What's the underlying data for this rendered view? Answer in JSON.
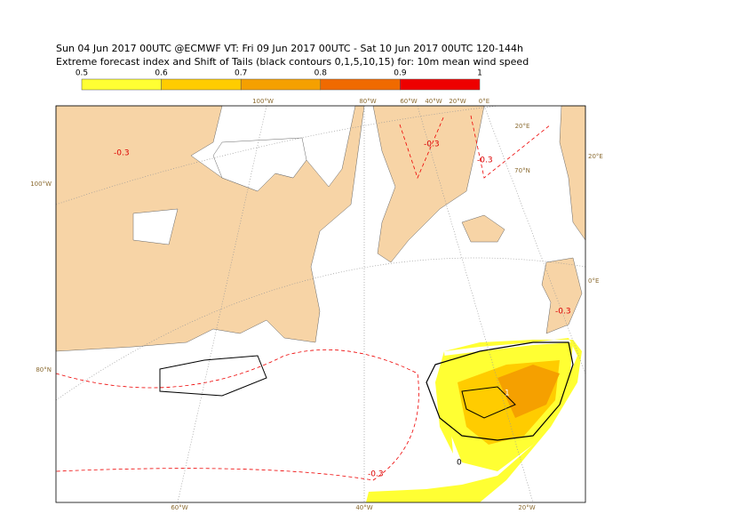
{
  "header": {
    "line1": "Sun 04 Jun 2017 00UTC @ECMWF VT: Fri 09 Jun 2017 00UTC - Sat 10 Jun 2017 00UTC  120-144h",
    "line2": "Extreme forecast index and Shift of Tails (black contours 0,1,5,10,15) for: 10m mean wind speed"
  },
  "colorbar": {
    "ticks": [
      0.5,
      0.6,
      0.7,
      0.8,
      0.9,
      1
    ],
    "colors": [
      "#ffff33",
      "#ffcc00",
      "#f5a000",
      "#f06a00",
      "#ee0000"
    ]
  },
  "map": {
    "grid_labels": [
      "100°W",
      "80°W",
      "60°W",
      "40°W",
      "20°W",
      "0°E",
      "20°E",
      "20°E",
      "70°N",
      "0°E",
      "100°W",
      "80°N",
      "60°W",
      "40°W",
      "20°W"
    ],
    "contour_labels": [
      "-0.3",
      "-0.3",
      "-0.3",
      "-0.3",
      "-0.3",
      "0",
      "1"
    ]
  }
}
